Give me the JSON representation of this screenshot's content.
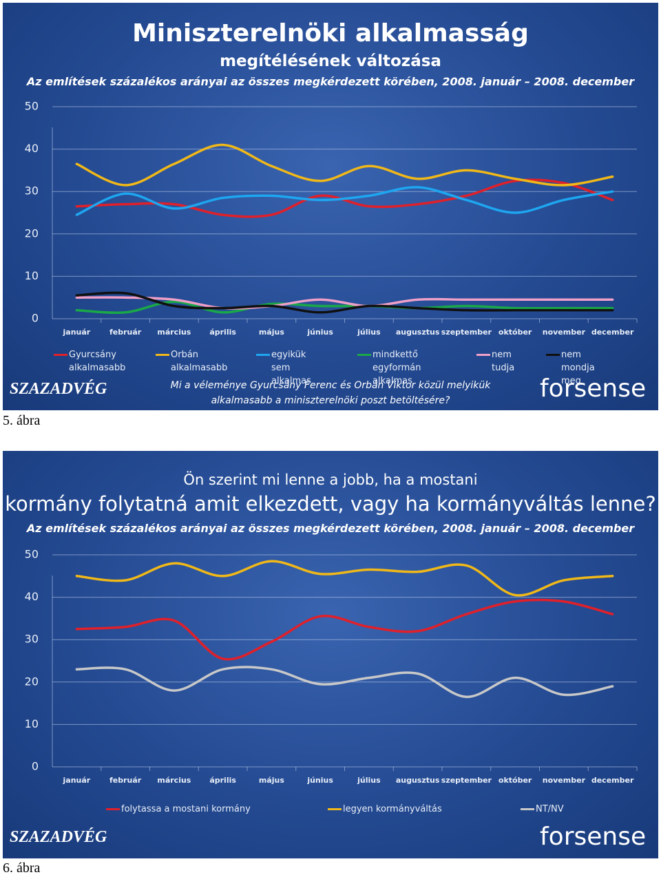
{
  "chart_data": [
    {
      "type": "line",
      "title": "Miniszterelnöki alkalmasság",
      "subtitle": "megítélésének változása",
      "note": "Az említések százalékos arányai az összes megkérdezett körében, 2008. január – 2008. december",
      "question": [
        "Mi a véleménye Gyurcsány Ferenc és Orbán Viktor közül melyikük",
        "alkalmasabb a miniszterelnöki poszt betöltésére?"
      ],
      "logos": [
        "SZAZADVÉG",
        "forsense"
      ],
      "caption": "5. ábra",
      "categories": [
        "január",
        "február",
        "március",
        "április",
        "május",
        "június",
        "július",
        "augusztus",
        "szeptember",
        "október",
        "november",
        "december"
      ],
      "ylim": [
        0,
        50
      ],
      "yticks": [
        0,
        10,
        20,
        30,
        40,
        50
      ],
      "grid": true,
      "series": [
        {
          "name": "Gyurcsány alkalmasabb",
          "color": "#e0202a",
          "values": [
            26.5,
            27,
            27,
            24.5,
            24.5,
            29,
            26.5,
            27,
            29,
            32.5,
            32,
            28
          ]
        },
        {
          "name": "Orbán alkalmasabb",
          "color": "#f0b818",
          "values": [
            36.5,
            31.5,
            36.5,
            41,
            36,
            32.5,
            36,
            33,
            35,
            33,
            31.5,
            33.5
          ]
        },
        {
          "name": "egyikük sem alkalmas",
          "color": "#1ea6f0",
          "values": [
            24.5,
            29.5,
            26,
            28.5,
            29,
            28,
            29,
            31,
            28,
            25,
            28,
            30
          ]
        },
        {
          "name": "mindkettő egyformán alkalmas",
          "color": "#1aa848",
          "values": [
            2,
            1.5,
            4,
            1.5,
            3.5,
            3,
            3,
            2.5,
            3,
            2.5,
            2.5,
            2.5
          ]
        },
        {
          "name": "nem tudja",
          "color": "#f0a0c8",
          "values": [
            5,
            5,
            4.5,
            2.5,
            3,
            4.5,
            3,
            4.5,
            4.5,
            4.5,
            4.5,
            4.5
          ]
        },
        {
          "name": "nem mondja meg",
          "color": "#101010",
          "values": [
            5.5,
            6,
            3,
            2.5,
            3,
            1.5,
            3,
            2.5,
            2,
            2,
            2,
            2
          ]
        }
      ]
    },
    {
      "type": "line",
      "title": "Ön szerint mi lenne a jobb, ha a mostani",
      "subtitle": "kormány folytatná amit elkezdett, vagy ha kormányváltás lenne?",
      "note": "Az említések százalékos arányai az összes megkérdezett körében, 2008. január – 2008. december",
      "logos": [
        "SZAZADVÉG",
        "forsense"
      ],
      "caption": "6. ábra",
      "categories": [
        "január",
        "február",
        "március",
        "április",
        "május",
        "június",
        "július",
        "augusztus",
        "szeptember",
        "október",
        "november",
        "december"
      ],
      "ylim": [
        0,
        50
      ],
      "yticks": [
        0,
        10,
        20,
        30,
        40,
        50
      ],
      "grid": true,
      "series": [
        {
          "name": "folytassa a mostani kormány",
          "color": "#e0202a",
          "values": [
            32.5,
            33,
            34.5,
            25.5,
            29.5,
            35.5,
            33,
            32,
            36,
            39,
            39,
            36
          ]
        },
        {
          "name": "legyen kormányváltás",
          "color": "#f0b818",
          "values": [
            45,
            44,
            48,
            45,
            48.5,
            45.5,
            46.5,
            46,
            47.5,
            40.5,
            44,
            45
          ]
        },
        {
          "name": "NT/NV",
          "color": "#c8c8c8",
          "values": [
            23,
            23,
            18,
            23,
            23,
            19.5,
            21,
            22,
            16.5,
            21,
            17,
            19
          ]
        }
      ]
    }
  ]
}
